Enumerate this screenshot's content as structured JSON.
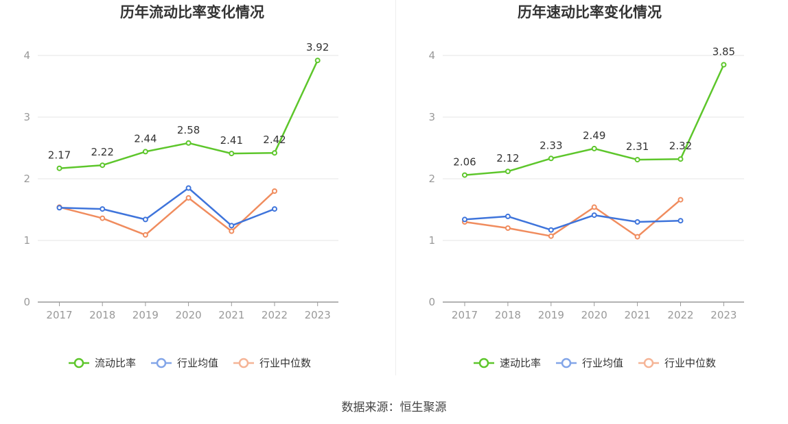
{
  "source": "数据来源：恒生聚源",
  "chart_data": [
    {
      "type": "line",
      "title": "历年流动比率变化情况",
      "xlabel": "",
      "ylabel": "",
      "categories": [
        "2017",
        "2018",
        "2019",
        "2020",
        "2021",
        "2022",
        "2023"
      ],
      "ylim": [
        0,
        4
      ],
      "yticks": [
        "0",
        "1",
        "2",
        "3",
        "4"
      ],
      "grid": true,
      "legend_position": "bottom",
      "series": [
        {
          "name": "流动比率",
          "color": "#5dc62b",
          "values": [
            2.17,
            2.22,
            2.44,
            2.58,
            2.41,
            2.42,
            3.92
          ],
          "labels": [
            "2.17",
            "2.22",
            "2.44",
            "2.58",
            "2.41",
            "2.42",
            "3.92"
          ]
        },
        {
          "name": "行业均值",
          "color": "#3e74db",
          "values": [
            1.53,
            1.51,
            1.34,
            1.85,
            1.24,
            1.51,
            null
          ]
        },
        {
          "name": "行业中位数",
          "color": "#f08c5e",
          "values": [
            1.54,
            1.36,
            1.09,
            1.69,
            1.15,
            1.8,
            null
          ]
        }
      ]
    },
    {
      "type": "line",
      "title": "历年速动比率变化情况",
      "xlabel": "",
      "ylabel": "",
      "categories": [
        "2017",
        "2018",
        "2019",
        "2020",
        "2021",
        "2022",
        "2023"
      ],
      "ylim": [
        0,
        4
      ],
      "yticks": [
        "0",
        "1",
        "2",
        "3",
        "4"
      ],
      "grid": true,
      "legend_position": "bottom",
      "series": [
        {
          "name": "速动比率",
          "color": "#5dc62b",
          "values": [
            2.06,
            2.12,
            2.33,
            2.49,
            2.31,
            2.32,
            3.85
          ],
          "labels": [
            "2.06",
            "2.12",
            "2.33",
            "2.49",
            "2.31",
            "2.32",
            "3.85"
          ]
        },
        {
          "name": "行业均值",
          "color": "#3e74db",
          "values": [
            1.34,
            1.39,
            1.17,
            1.41,
            1.3,
            1.32,
            null
          ]
        },
        {
          "name": "行业中位数",
          "color": "#f08c5e",
          "values": [
            1.3,
            1.2,
            1.07,
            1.54,
            1.06,
            1.66,
            null
          ]
        }
      ]
    }
  ]
}
